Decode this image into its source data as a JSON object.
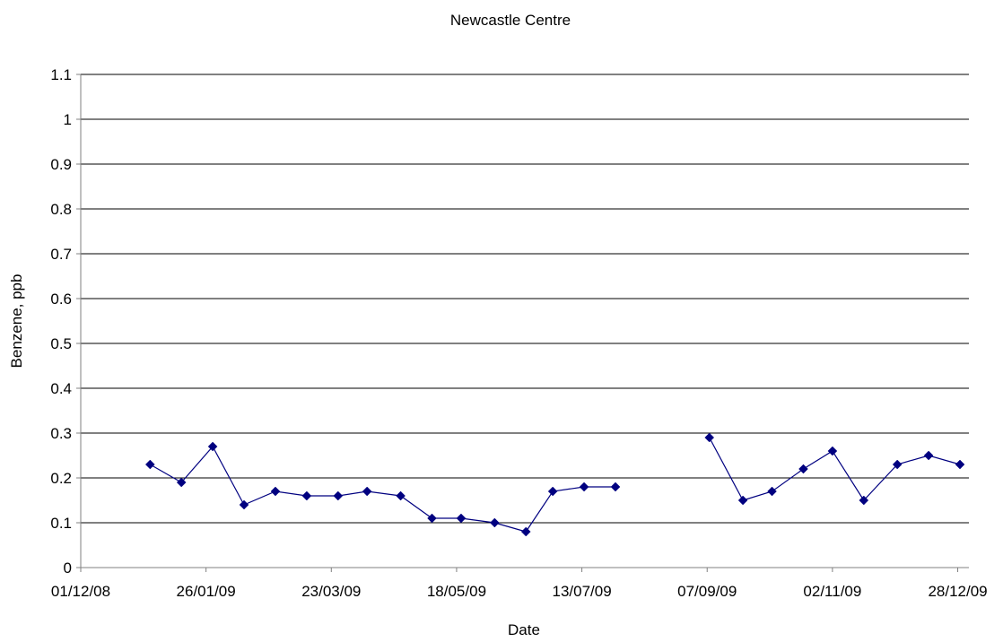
{
  "chart_data": {
    "type": "line",
    "title": "Newcastle Centre",
    "xlabel": "Date",
    "ylabel": "Benzene, ppb",
    "xlim": [
      "01/12/08",
      "02/01/10"
    ],
    "ylim": [
      0,
      1.1
    ],
    "x_tick_labels": [
      "01/12/08",
      "26/01/09",
      "23/03/09",
      "18/05/09",
      "13/07/09",
      "07/09/09",
      "02/11/09",
      "28/12/09"
    ],
    "y_tick_labels": [
      "0",
      "0.1",
      "0.2",
      "0.3",
      "0.4",
      "0.5",
      "0.6",
      "0.7",
      "0.8",
      "0.9",
      "1",
      "1.1"
    ],
    "grid": true,
    "legend": "none",
    "series_color": "#000080",
    "series": [
      {
        "segments": [
          [
            {
              "x": "01/01/09",
              "y": 0.23
            },
            {
              "x": "15/01/09",
              "y": 0.19
            },
            {
              "x": "29/01/09",
              "y": 0.27
            },
            {
              "x": "12/02/09",
              "y": 0.14
            },
            {
              "x": "26/02/09",
              "y": 0.17
            },
            {
              "x": "12/03/09",
              "y": 0.16
            },
            {
              "x": "26/03/09",
              "y": 0.16
            },
            {
              "x": "08/04/09",
              "y": 0.17
            },
            {
              "x": "23/04/09",
              "y": 0.16
            },
            {
              "x": "07/05/09",
              "y": 0.11
            },
            {
              "x": "20/05/09",
              "y": 0.11
            },
            {
              "x": "04/06/09",
              "y": 0.1
            },
            {
              "x": "18/06/09",
              "y": 0.08
            },
            {
              "x": "30/06/09",
              "y": 0.17
            },
            {
              "x": "14/07/09",
              "y": 0.18
            },
            {
              "x": "28/07/09",
              "y": 0.18
            }
          ],
          [
            {
              "x": "08/09/09",
              "y": 0.29
            },
            {
              "x": "23/09/09",
              "y": 0.15
            },
            {
              "x": "06/10/09",
              "y": 0.17
            },
            {
              "x": "20/10/09",
              "y": 0.22
            },
            {
              "x": "02/11/09",
              "y": 0.26
            },
            {
              "x": "16/11/09",
              "y": 0.15
            },
            {
              "x": "01/12/09",
              "y": 0.23
            },
            {
              "x": "15/12/09",
              "y": 0.25
            },
            {
              "x": "29/12/09",
              "y": 0.23
            }
          ]
        ]
      }
    ]
  }
}
